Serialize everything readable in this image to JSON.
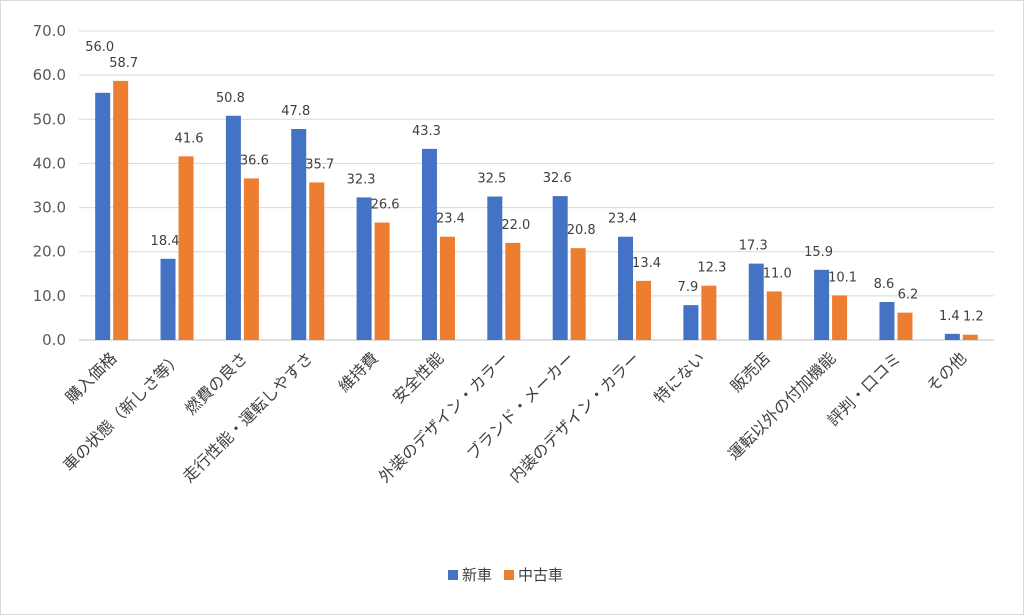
{
  "chart_data": {
    "type": "bar",
    "categories": [
      "購入価格",
      "車の状態（新しさ等）",
      "燃費の良さ",
      "走行性能・運転しやすさ",
      "維持費",
      "安全性能",
      "外装のデザイン・カラー",
      "ブランド・メーカー",
      "内装のデザイン・カラー",
      "特にない",
      "販売店",
      "運転以外の付加機能",
      "評判・口コミ",
      "その他"
    ],
    "series": [
      {
        "name": "新車",
        "color": "#4472c4",
        "values": [
          56.0,
          18.4,
          50.8,
          47.8,
          32.3,
          43.3,
          32.5,
          32.6,
          23.4,
          7.9,
          17.3,
          15.9,
          8.6,
          1.4
        ]
      },
      {
        "name": "中古車",
        "color": "#ed7d31",
        "values": [
          58.7,
          41.6,
          36.6,
          35.7,
          26.6,
          23.4,
          22.0,
          20.8,
          13.4,
          12.3,
          11.0,
          10.1,
          6.2,
          1.2
        ]
      }
    ],
    "ylim": [
      0,
      70
    ],
    "yticks": [
      "0.0",
      "10.0",
      "20.0",
      "30.0",
      "40.0",
      "50.0",
      "60.0",
      "70.0"
    ],
    "grid": true,
    "legend": "bottom"
  }
}
